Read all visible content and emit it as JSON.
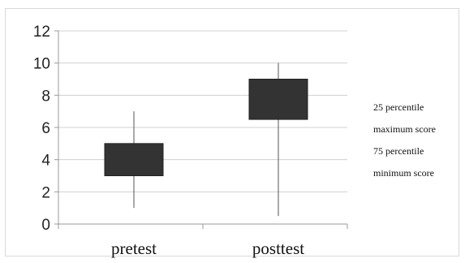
{
  "chart_data": {
    "type": "boxplot",
    "categories": [
      "pretest",
      "posttest"
    ],
    "series": [
      {
        "category": "pretest",
        "min": 1,
        "q25": 3,
        "q75": 5,
        "max": 7
      },
      {
        "category": "posttest",
        "min": 0.5,
        "q25": 6.5,
        "q75": 9,
        "max": 10
      }
    ],
    "ylim": [
      0,
      12
    ],
    "yticks": [
      "0",
      "2",
      "4",
      "6",
      "8",
      "10",
      "12"
    ],
    "grid": true,
    "legend_position": "right",
    "legend": [
      "25 percentile",
      "maximum score",
      "75 percentile",
      "minimum score"
    ],
    "colors": {
      "box": "#333333",
      "whisker": "#555555",
      "grid": "#d0d0d0"
    }
  }
}
